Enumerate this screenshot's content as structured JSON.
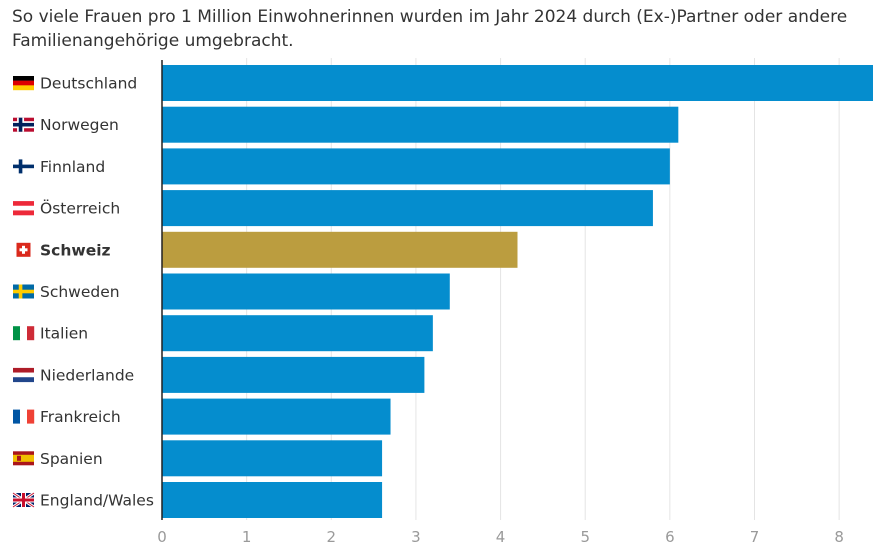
{
  "title": "So viele Frauen pro 1 Million Einwohnerinnen wurden im Jahr 2024 durch (Ex-)Partner oder andere Familienangehörige umgebracht.",
  "colors": {
    "bar": "#058dce",
    "highlight": "#bb9d3f",
    "grid": "#e4e4e4",
    "axis": "#222222",
    "tick_label": "#9a9a9a",
    "label": "#333333"
  },
  "chart_data": {
    "type": "bar",
    "orientation": "horizontal",
    "categories": [
      "Deutschland",
      "Norwegen",
      "Finnland",
      "Österreich",
      "Schweiz",
      "Schweden",
      "Italien",
      "Niederlande",
      "Frankreich",
      "Spanien",
      "England/Wales"
    ],
    "flag_icons": [
      "flag-germany-icon",
      "flag-norway-icon",
      "flag-finland-icon",
      "flag-austria-icon",
      "flag-switzerland-icon",
      "flag-sweden-icon",
      "flag-italy-icon",
      "flag-netherlands-icon",
      "flag-france-icon",
      "flag-spain-icon",
      "flag-uk-icon"
    ],
    "values": [
      8.4,
      6.1,
      6.0,
      5.8,
      4.2,
      3.4,
      3.2,
      3.1,
      2.7,
      2.6,
      2.6
    ],
    "highlight": "Schweiz",
    "xlim": [
      0,
      8.4
    ],
    "xticks": [
      "0",
      "1",
      "2",
      "3",
      "4",
      "5",
      "6",
      "7",
      "8"
    ],
    "grid": true
  }
}
